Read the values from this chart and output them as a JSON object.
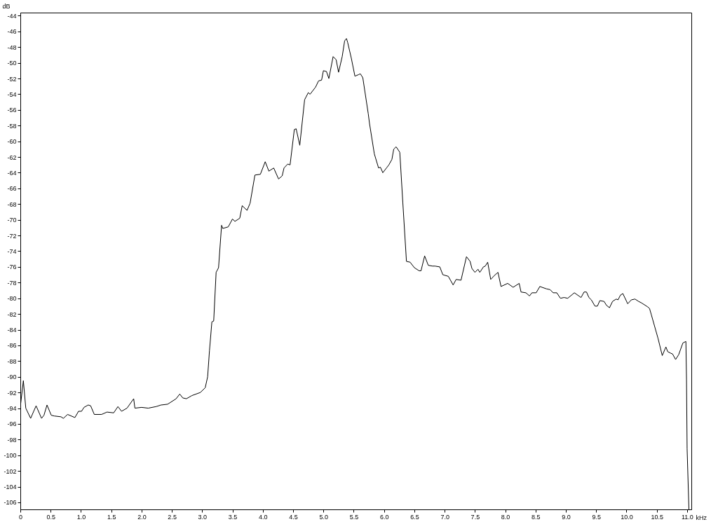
{
  "chart_data": {
    "type": "line",
    "xlabel": "kHz",
    "ylabel": "dB",
    "x": [
      0,
      0.05,
      0.09,
      0.17,
      0.26,
      0.35,
      0.39,
      0.44,
      0.51,
      0.56,
      0.67,
      0.71,
      0.78,
      0.9,
      0.96,
      1.01,
      1.05,
      1.12,
      1.16,
      1.22,
      1.34,
      1.43,
      1.54,
      1.61,
      1.67,
      1.76,
      1.87,
      1.89,
      2.0,
      2.11,
      2.24,
      2.32,
      2.43,
      2.57,
      2.63,
      2.68,
      2.74,
      2.83,
      2.97,
      3.05,
      3.09,
      3.12,
      3.16,
      3.19,
      3.23,
      3.27,
      3.32,
      3.34,
      3.43,
      3.5,
      3.54,
      3.62,
      3.66,
      3.74,
      3.79,
      3.87,
      3.96,
      4.04,
      4.1,
      4.18,
      4.26,
      4.32,
      4.35,
      4.41,
      4.45,
      4.52,
      4.55,
      4.61,
      4.69,
      4.75,
      4.78,
      4.87,
      4.92,
      4.97,
      5.0,
      5.05,
      5.09,
      5.16,
      5.21,
      5.25,
      5.31,
      5.35,
      5.38,
      5.4,
      5.46,
      5.52,
      5.58,
      5.61,
      5.65,
      5.74,
      5.76,
      5.84,
      5.91,
      5.94,
      5.98,
      6.04,
      6.08,
      6.13,
      6.16,
      6.2,
      6.26,
      6.31,
      6.37,
      6.43,
      6.5,
      6.58,
      6.61,
      6.67,
      6.73,
      6.8,
      6.84,
      6.92,
      6.97,
      7.06,
      7.14,
      7.19,
      7.27,
      7.36,
      7.42,
      7.45,
      7.5,
      7.55,
      7.58,
      7.64,
      7.67,
      7.71,
      7.76,
      7.82,
      7.88,
      7.93,
      8.04,
      8.13,
      8.23,
      8.26,
      8.34,
      8.4,
      8.44,
      8.51,
      8.57,
      8.68,
      8.74,
      8.79,
      8.85,
      8.91,
      8.97,
      9.03,
      9.14,
      9.25,
      9.3,
      9.34,
      9.38,
      9.42,
      9.48,
      9.52,
      9.56,
      9.63,
      9.67,
      9.72,
      9.77,
      9.83,
      9.86,
      9.9,
      9.94,
      10.02,
      10.08,
      10.14,
      10.2,
      10.25,
      10.35,
      10.38,
      10.41,
      10.52,
      10.59,
      10.65,
      10.68,
      10.73,
      10.76,
      10.81,
      10.86,
      10.93,
      10.98,
      10.99,
      11.0,
      11.03
    ],
    "series": [
      {
        "color": "#000000",
        "values": [
          -93.8,
          -90.5,
          -94.0,
          -95.3,
          -93.7,
          -95.3,
          -94.9,
          -93.6,
          -94.9,
          -95.0,
          -95.1,
          -95.3,
          -94.8,
          -95.2,
          -94.4,
          -94.4,
          -93.9,
          -93.6,
          -93.7,
          -94.8,
          -94.8,
          -94.5,
          -94.6,
          -93.8,
          -94.4,
          -94.0,
          -92.8,
          -94.0,
          -93.9,
          -94.0,
          -93.8,
          -93.6,
          -93.5,
          -92.8,
          -92.2,
          -92.7,
          -92.8,
          -92.4,
          -92.0,
          -91.4,
          -90.0,
          -86.7,
          -83.0,
          -82.9,
          -76.7,
          -76.1,
          -70.7,
          -71.1,
          -70.9,
          -69.9,
          -70.2,
          -69.8,
          -68.2,
          -68.8,
          -67.9,
          -64.3,
          -64.2,
          -62.6,
          -63.8,
          -63.4,
          -64.8,
          -64.4,
          -63.4,
          -62.9,
          -63.0,
          -58.5,
          -58.4,
          -60.5,
          -54.7,
          -53.8,
          -54.0,
          -53.1,
          -52.3,
          -52.2,
          -51.0,
          -51.1,
          -52.0,
          -49.2,
          -49.6,
          -51.2,
          -49.2,
          -47.2,
          -46.9,
          -47.4,
          -49.4,
          -51.7,
          -51.5,
          -51.4,
          -51.9,
          -56.5,
          -57.7,
          -61.6,
          -63.4,
          -63.3,
          -64.0,
          -63.4,
          -63.0,
          -62.3,
          -61.0,
          -60.7,
          -61.4,
          -67.8,
          -75.3,
          -75.4,
          -76.1,
          -76.5,
          -76.5,
          -74.6,
          -75.8,
          -75.9,
          -75.9,
          -76.0,
          -77.0,
          -77.2,
          -78.3,
          -77.6,
          -77.7,
          -74.7,
          -75.3,
          -76.2,
          -76.7,
          -76.3,
          -76.7,
          -76.0,
          -75.9,
          -75.4,
          -77.6,
          -77.1,
          -76.7,
          -78.5,
          -78.1,
          -78.6,
          -78.1,
          -79.2,
          -79.3,
          -79.7,
          -79.3,
          -79.3,
          -78.5,
          -78.8,
          -78.9,
          -79.3,
          -79.3,
          -80.0,
          -79.9,
          -80.0,
          -79.3,
          -79.9,
          -79.2,
          -79.2,
          -79.9,
          -80.2,
          -81.0,
          -81.0,
          -80.3,
          -80.4,
          -80.9,
          -81.2,
          -80.4,
          -80.1,
          -80.2,
          -79.6,
          -79.4,
          -80.7,
          -80.2,
          -80.1,
          -80.4,
          -80.6,
          -81.1,
          -81.3,
          -82.1,
          -85.1,
          -87.3,
          -86.2,
          -86.8,
          -87.0,
          -87.1,
          -87.8,
          -87.2,
          -85.7,
          -85.5,
          -90.3,
          -99.2,
          -106.9
        ]
      }
    ],
    "xlim": [
      0,
      11.07
    ],
    "ylim": [
      -106.9,
      -43.6
    ],
    "xticks": [
      0,
      0.5,
      {
        "value": 1,
        "label": "1.0"
      },
      1.5,
      {
        "value": 2,
        "label": "2.0"
      },
      2.5,
      {
        "value": 3,
        "label": "3.0"
      },
      3.5,
      {
        "value": 4,
        "label": "4.0"
      },
      4.5,
      {
        "value": 5,
        "label": "5.0"
      },
      5.5,
      {
        "value": 6,
        "label": "6.0"
      },
      6.5,
      {
        "value": 7,
        "label": "7.0"
      },
      7.5,
      {
        "value": 8,
        "label": "8.0"
      },
      8.5,
      {
        "value": 9,
        "label": "9.0"
      },
      9.5,
      {
        "value": 10,
        "label": "10.0"
      },
      10.5,
      {
        "value": 11,
        "label": "11.0"
      }
    ],
    "yticks": [
      -106,
      -104,
      -102,
      -100,
      -98,
      -96,
      -94,
      -92,
      -90,
      -88,
      -86,
      -84,
      -82,
      -80,
      -78,
      -76,
      -74,
      -72,
      -70,
      -68,
      -66,
      -64,
      -62,
      -60,
      -58,
      -56,
      -54,
      -52,
      -50,
      -48,
      -46,
      -44
    ]
  }
}
